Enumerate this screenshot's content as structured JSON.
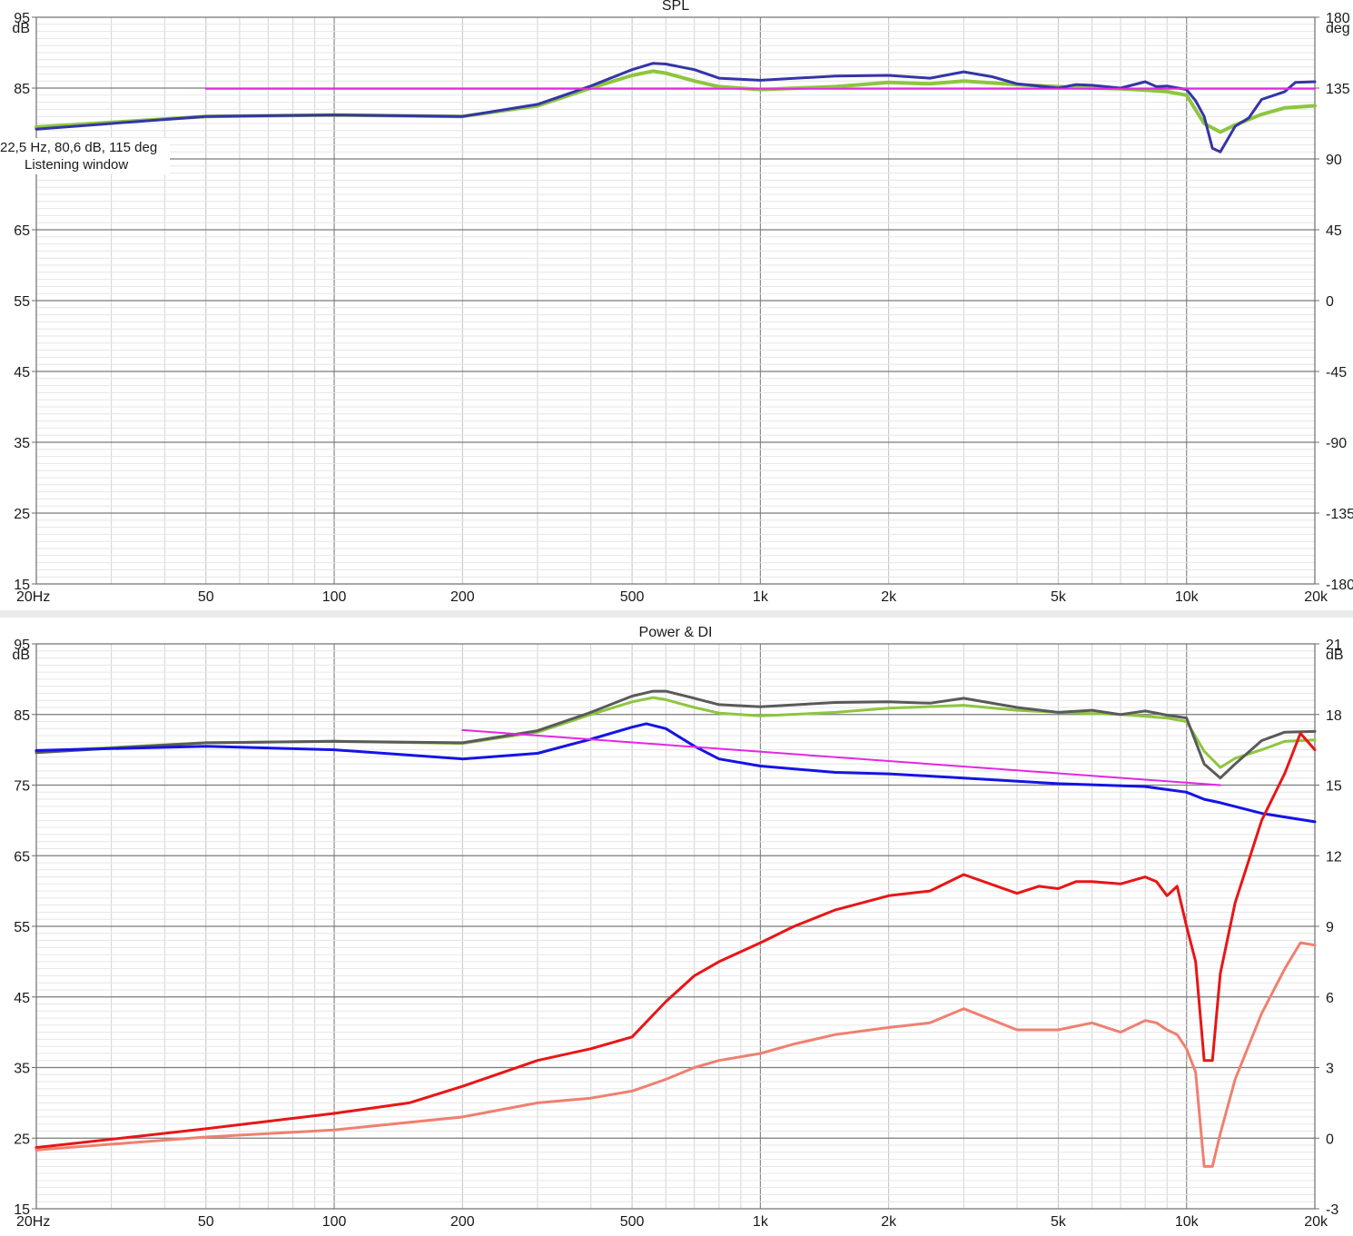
{
  "chart_data": [
    {
      "type": "line",
      "title": "SPL",
      "x_scale": "log",
      "xlim": [
        20,
        20000
      ],
      "ylim": [
        15,
        95
      ],
      "y2lim": [
        -180,
        180
      ],
      "left_unit": "dB",
      "right_unit": "deg",
      "x_ticks": [
        {
          "v": 20,
          "label": "20Hz"
        },
        {
          "v": 50,
          "label": "50"
        },
        {
          "v": 100,
          "label": "100"
        },
        {
          "v": 200,
          "label": "200"
        },
        {
          "v": 500,
          "label": "500"
        },
        {
          "v": 1000,
          "label": "1k"
        },
        {
          "v": 2000,
          "label": "2k"
        },
        {
          "v": 5000,
          "label": "5k"
        },
        {
          "v": 10000,
          "label": "10k"
        },
        {
          "v": 20000,
          "label": "20k"
        }
      ],
      "left_ticks": [
        "95",
        "85",
        "75",
        "65",
        "55",
        "45",
        "35",
        "25",
        "15"
      ],
      "right_ticks": [
        "180",
        "135",
        "90",
        "45",
        "0",
        "-45",
        "-90",
        "-135",
        "-180"
      ],
      "cursor": {
        "line1": "22,5 Hz, 80,6 dB, 115 deg",
        "line2": "Listening window"
      },
      "grid": true,
      "series": [
        {
          "color": "#8dc63f",
          "width": 4,
          "axis": "left",
          "x": [
            20,
            50,
            100,
            200,
            300,
            400,
            500,
            560,
            600,
            700,
            800,
            1000,
            1500,
            2000,
            2500,
            3000,
            4000,
            5000,
            6000,
            7000,
            8000,
            9000,
            10000,
            11000,
            12000,
            13000,
            15000,
            17000,
            20000
          ],
          "y": [
            79.5,
            81.0,
            81.2,
            81.0,
            82.5,
            85.0,
            86.8,
            87.4,
            87.1,
            86.0,
            85.2,
            84.8,
            85.2,
            85.8,
            85.6,
            86.0,
            85.5,
            85.2,
            85.0,
            84.9,
            84.7,
            84.5,
            84.0,
            80.0,
            78.8,
            79.8,
            81.3,
            82.2,
            82.5
          ]
        },
        {
          "color": "#3535a8",
          "width": 3,
          "axis": "left",
          "x": [
            20,
            50,
            100,
            200,
            300,
            400,
            500,
            560,
            600,
            700,
            800,
            1000,
            1500,
            2000,
            2500,
            3000,
            3500,
            4000,
            5000,
            5500,
            6000,
            7000,
            8000,
            8500,
            9000,
            10000,
            10500,
            11000,
            11500,
            12000,
            13000,
            14000,
            15000,
            17000,
            18000,
            20000
          ],
          "y": [
            79.2,
            81.0,
            81.2,
            81.0,
            82.7,
            85.3,
            87.6,
            88.5,
            88.4,
            87.6,
            86.4,
            86.1,
            86.7,
            86.8,
            86.4,
            87.3,
            86.6,
            85.6,
            85.0,
            85.5,
            85.4,
            85.0,
            85.9,
            85.2,
            85.3,
            84.8,
            83.2,
            81.0,
            76.5,
            76.0,
            79.6,
            80.8,
            83.4,
            84.5,
            85.8,
            85.9
          ]
        },
        {
          "color": "#e328e3",
          "width": 2,
          "axis": "left",
          "x": [
            50,
            20000
          ],
          "y": [
            84.9,
            84.9
          ]
        }
      ]
    },
    {
      "type": "line",
      "title": "Power & DI",
      "x_scale": "log",
      "xlim": [
        20,
        20000
      ],
      "ylim": [
        15,
        95
      ],
      "y2lim": [
        -3,
        21
      ],
      "left_unit": "dB",
      "right_unit": "dB",
      "x_ticks": [
        {
          "v": 20,
          "label": "20Hz"
        },
        {
          "v": 50,
          "label": "50"
        },
        {
          "v": 100,
          "label": "100"
        },
        {
          "v": 200,
          "label": "200"
        },
        {
          "v": 500,
          "label": "500"
        },
        {
          "v": 1000,
          "label": "1k"
        },
        {
          "v": 2000,
          "label": "2k"
        },
        {
          "v": 5000,
          "label": "5k"
        },
        {
          "v": 10000,
          "label": "10k"
        },
        {
          "v": 20000,
          "label": "20k"
        }
      ],
      "left_ticks": [
        "95",
        "85",
        "75",
        "65",
        "55",
        "45",
        "35",
        "25",
        "15"
      ],
      "right_ticks": [
        "21",
        "18",
        "15",
        "12",
        "9",
        "6",
        "3",
        "0",
        "-3"
      ],
      "grid": true,
      "series": [
        {
          "color": "#8dc63f",
          "width": 3,
          "axis": "left",
          "x": [
            20,
            50,
            100,
            200,
            300,
            400,
            500,
            560,
            600,
            700,
            800,
            1000,
            1500,
            2000,
            3000,
            4000,
            5000,
            7000,
            9000,
            10000,
            11000,
            12000,
            13000,
            15000,
            17000,
            20000
          ],
          "y": [
            79.8,
            81.0,
            81.2,
            80.9,
            82.5,
            85.0,
            86.8,
            87.4,
            87.1,
            86.0,
            85.2,
            84.8,
            85.3,
            85.9,
            86.3,
            85.6,
            85.3,
            85.0,
            84.5,
            84.0,
            79.8,
            77.5,
            78.8,
            80.0,
            81.2,
            81.4
          ]
        },
        {
          "color": "#5a5a5a",
          "width": 3,
          "axis": "left",
          "x": [
            20,
            50,
            100,
            200,
            300,
            400,
            500,
            560,
            600,
            700,
            800,
            1000,
            1500,
            2000,
            2500,
            3000,
            4000,
            5000,
            6000,
            7000,
            8000,
            9000,
            10000,
            11000,
            12000,
            13000,
            15000,
            17000,
            20000
          ],
          "y": [
            79.6,
            81.0,
            81.2,
            81.0,
            82.7,
            85.3,
            87.6,
            88.3,
            88.3,
            87.3,
            86.4,
            86.1,
            86.7,
            86.8,
            86.6,
            87.3,
            86.0,
            85.3,
            85.6,
            85.0,
            85.5,
            84.9,
            84.5,
            78.0,
            76.0,
            78.0,
            81.3,
            82.5,
            82.6
          ]
        },
        {
          "color": "#1414e6",
          "width": 3,
          "axis": "left",
          "x": [
            20,
            50,
            100,
            200,
            300,
            400,
            500,
            540,
            600,
            700,
            800,
            1000,
            1500,
            2000,
            3000,
            5000,
            8000,
            10000,
            11000,
            12000,
            15000,
            20000
          ],
          "y": [
            79.9,
            80.5,
            80.0,
            78.7,
            79.5,
            81.5,
            83.2,
            83.7,
            83.0,
            80.5,
            78.7,
            77.7,
            76.8,
            76.6,
            76.0,
            75.2,
            74.8,
            74.0,
            73.0,
            72.5,
            71.0,
            69.8
          ]
        },
        {
          "color": "#e328e3",
          "width": 2,
          "axis": "left",
          "x": [
            200,
            12000
          ],
          "y": [
            82.8,
            75.0
          ]
        },
        {
          "color": "#e81616",
          "width": 3,
          "axis": "right",
          "x": [
            20,
            50,
            100,
            150,
            200,
            300,
            400,
            500,
            600,
            700,
            800,
            1000,
            1200,
            1500,
            2000,
            2500,
            3000,
            4000,
            4500,
            5000,
            5500,
            6000,
            7000,
            8000,
            8500,
            9000,
            9500,
            10000,
            10500,
            11000,
            11500,
            12000,
            13000,
            15000,
            17000,
            18500,
            20000
          ],
          "y": [
            -0.4,
            0.4,
            1.05,
            1.5,
            2.2,
            3.3,
            3.8,
            4.3,
            5.8,
            6.9,
            7.5,
            8.3,
            9.0,
            9.7,
            10.3,
            10.5,
            11.2,
            10.4,
            10.7,
            10.6,
            10.9,
            10.9,
            10.8,
            11.1,
            10.9,
            10.3,
            10.7,
            9.0,
            7.5,
            3.3,
            3.3,
            7.0,
            10.0,
            13.5,
            15.5,
            17.2,
            16.5
          ]
        },
        {
          "color": "#f08070",
          "width": 3,
          "axis": "right",
          "x": [
            20,
            50,
            100,
            200,
            300,
            400,
            500,
            600,
            700,
            800,
            1000,
            1200,
            1500,
            2000,
            2500,
            3000,
            4000,
            5000,
            6000,
            7000,
            8000,
            8500,
            9000,
            9500,
            10000,
            10500,
            11000,
            11500,
            12000,
            13000,
            15000,
            17000,
            18500,
            20000
          ],
          "y": [
            -0.5,
            0.05,
            0.35,
            0.9,
            1.5,
            1.7,
            2.0,
            2.5,
            3.0,
            3.3,
            3.6,
            4.0,
            4.4,
            4.7,
            4.9,
            5.5,
            4.6,
            4.6,
            4.9,
            4.5,
            5.0,
            4.9,
            4.6,
            4.4,
            3.8,
            2.8,
            -1.2,
            -1.2,
            0.2,
            2.5,
            5.3,
            7.2,
            8.3,
            8.2
          ]
        }
      ]
    }
  ]
}
